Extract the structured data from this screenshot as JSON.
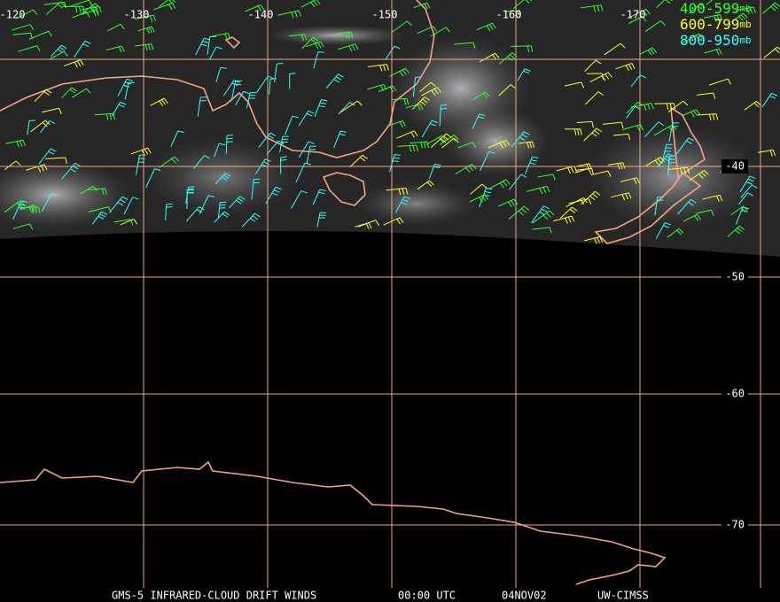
{
  "longitude_labels": [
    "-120",
    "-130",
    "-140",
    "-150",
    "-160",
    "-170"
  ],
  "latitude_labels": [
    "-40",
    "-50",
    "-60",
    "-70"
  ],
  "legend": [
    {
      "range": "400-599",
      "unit": "mb",
      "color": "#33ff33"
    },
    {
      "range": "600-799",
      "unit": "mb",
      "color": "#ffff33"
    },
    {
      "range": "800-950",
      "unit": "mb",
      "color": "#33ffff"
    }
  ],
  "footer": {
    "title": "GMS-5 INFRARED-CLOUD DRIFT WINDS",
    "time": "00:00 UTC",
    "date": "04NOV02",
    "source": "UW-CIMSS"
  }
}
